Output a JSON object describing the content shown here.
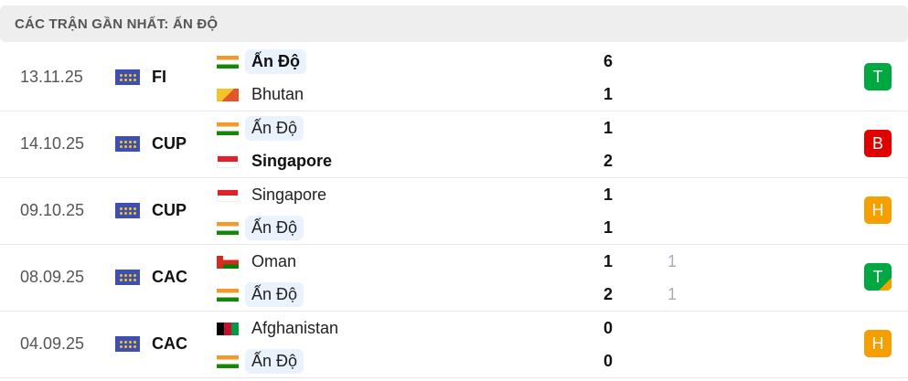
{
  "title": "CÁC TRẬN GẦN NHẤT: ẤN ĐỘ",
  "colors": {
    "win": "#00a842",
    "loss": "#e00000",
    "draw": "#f5a000",
    "highlight": "#eaf3fd"
  },
  "matches": [
    {
      "date": "13.11.25",
      "competition": "FI",
      "competition_icon": "world-map-icon",
      "home": {
        "name": "Ấn Độ",
        "flag": "india",
        "score": "6",
        "bold": true,
        "highlight": true
      },
      "away": {
        "name": "Bhutan",
        "flag": "bhutan",
        "score": "1"
      },
      "result": "T",
      "result_color": "#00a842"
    },
    {
      "date": "14.10.25",
      "competition": "CUP",
      "competition_icon": "world-map-icon",
      "home": {
        "name": "Ấn Độ",
        "flag": "india",
        "score": "1",
        "highlight": true
      },
      "away": {
        "name": "Singapore",
        "flag": "singapore",
        "score": "2",
        "bold": true
      },
      "result": "B",
      "result_color": "#e00000"
    },
    {
      "date": "09.10.25",
      "competition": "CUP",
      "competition_icon": "world-map-icon",
      "home": {
        "name": "Singapore",
        "flag": "singapore",
        "score": "1"
      },
      "away": {
        "name": "Ấn Độ",
        "flag": "india",
        "score": "1",
        "highlight": true
      },
      "result": "H",
      "result_color": "#f5a000"
    },
    {
      "date": "08.09.25",
      "competition": "CAC",
      "competition_icon": "world-map-icon",
      "home": {
        "name": "Oman",
        "flag": "oman",
        "score": "1",
        "penalty": "1"
      },
      "away": {
        "name": "Ấn Độ",
        "flag": "india",
        "score": "2",
        "penalty": "1",
        "highlight": true
      },
      "result": "T",
      "result_color": "#00a842",
      "result_note": "penalty-corner"
    },
    {
      "date": "04.09.25",
      "competition": "CAC",
      "competition_icon": "world-map-icon",
      "home": {
        "name": "Afghanistan",
        "flag": "afghanistan",
        "score": "0"
      },
      "away": {
        "name": "Ấn Độ",
        "flag": "india",
        "score": "0",
        "highlight": true
      },
      "result": "H",
      "result_color": "#f5a000"
    }
  ]
}
